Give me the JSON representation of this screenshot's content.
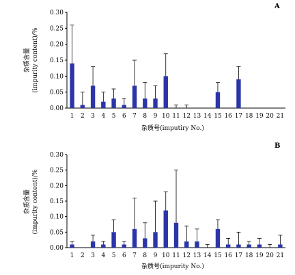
{
  "chart_data": [
    {
      "type": "bar",
      "panel_label": "A",
      "categories": [
        "1",
        "2",
        "3",
        "4",
        "5",
        "6",
        "7",
        "8",
        "9",
        "10",
        "11",
        "12",
        "13",
        "14",
        "15",
        "16",
        "17",
        "18",
        "19",
        "20",
        "21"
      ],
      "values": [
        0.14,
        0.01,
        0.07,
        0.02,
        0.03,
        0.01,
        0.07,
        0.03,
        0.03,
        0.1,
        0.0,
        0.0,
        0.0,
        0.0,
        0.05,
        0.0,
        0.09,
        0.0,
        0.0,
        0.0,
        0.0
      ],
      "errors": [
        0.12,
        0.04,
        0.06,
        0.03,
        0.03,
        0.02,
        0.08,
        0.05,
        0.04,
        0.07,
        0.01,
        0.01,
        0.0,
        0.0,
        0.03,
        0.0,
        0.04,
        0.0,
        0.0,
        0.0,
        0.0
      ],
      "ylabel": "杂质含量\n(impurity content)/%",
      "xlabel": "杂质号(imputiry No.)",
      "yticks": [
        "0.00",
        "0.05",
        "0.10",
        "0.15",
        "0.20",
        "0.25",
        "0.30"
      ],
      "ylim": [
        0,
        0.3
      ],
      "grid": false,
      "error_bars": true
    },
    {
      "type": "bar",
      "panel_label": "B",
      "categories": [
        "1",
        "2",
        "3",
        "4",
        "5",
        "6",
        "7",
        "8",
        "9",
        "10",
        "11",
        "12",
        "13",
        "14",
        "15",
        "16",
        "17",
        "18",
        "19",
        "20",
        "21"
      ],
      "values": [
        0.01,
        0.0,
        0.02,
        0.01,
        0.05,
        0.01,
        0.06,
        0.03,
        0.05,
        0.12,
        0.08,
        0.02,
        0.02,
        0.0,
        0.06,
        0.01,
        0.01,
        0.01,
        0.01,
        0.0,
        0.01
      ],
      "errors": [
        0.01,
        0.0,
        0.02,
        0.01,
        0.04,
        0.01,
        0.1,
        0.05,
        0.1,
        0.06,
        0.17,
        0.05,
        0.04,
        0.01,
        0.03,
        0.02,
        0.04,
        0.01,
        0.02,
        0.01,
        0.03
      ],
      "ylabel": "杂质含量\n(impurity content)/%",
      "xlabel": "杂质号(impurity No.)",
      "yticks": [
        "0.00",
        "0.05",
        "0.10",
        "0.15",
        "0.20",
        "0.25",
        "0.30"
      ],
      "ylim": [
        0,
        0.3
      ],
      "grid": false,
      "error_bars": true
    }
  ]
}
